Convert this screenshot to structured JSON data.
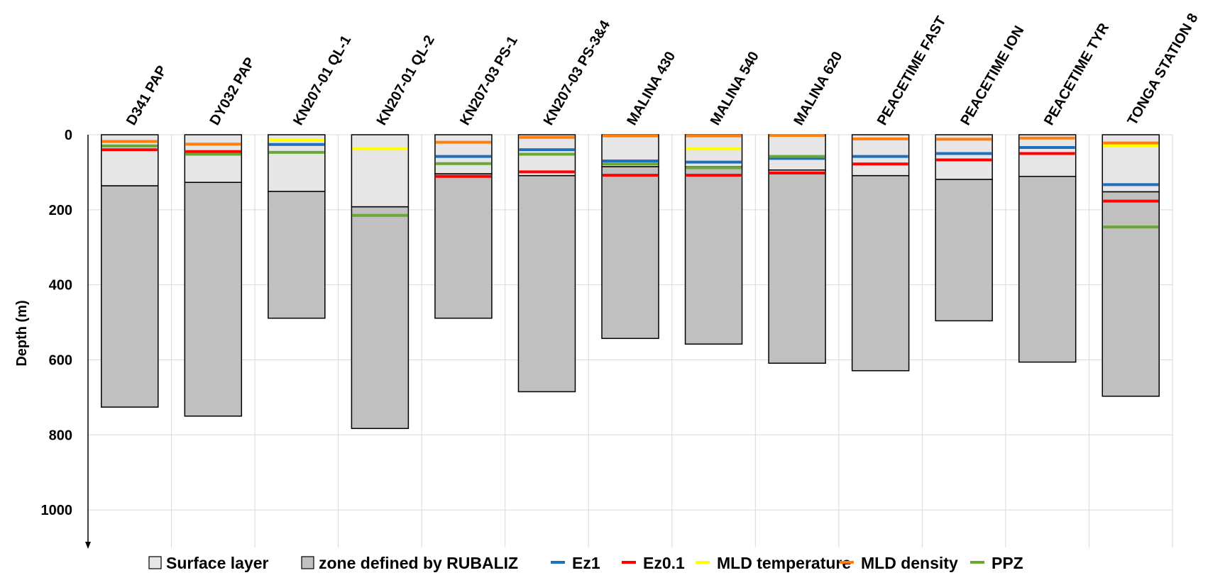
{
  "chart_data": {
    "type": "bar",
    "title": "",
    "xlabel": "",
    "ylabel": "Depth (m)",
    "ylim": [
      0,
      1100
    ],
    "y_inverted": true,
    "yticks": [
      0,
      200,
      400,
      600,
      800,
      1000
    ],
    "grid": true,
    "legend_position": "bottom",
    "categories": [
      "D341 PAP",
      "DY032 PAP",
      "KN207-01 QL-1",
      "KN207-01 QL-2",
      "KN207-03 PS-1",
      "KN207-03 PS-3&4",
      "MALINA 430",
      "MALINA 540",
      "MALINA 620",
      "PEACETIME FAST",
      "PEACETIME ION",
      "PEACETIME TYR",
      "TONGA STATION 8"
    ],
    "surface_layer": [
      136,
      127,
      151,
      192,
      104,
      109,
      85,
      85,
      94,
      109,
      119,
      111,
      152
    ],
    "rubaliz_zone_bottom": [
      726,
      750,
      489,
      783,
      489,
      685,
      543,
      558,
      609,
      629,
      496,
      606,
      697
    ],
    "series": [
      {
        "name": "Surface layer",
        "kind": "bar",
        "color": "#e6e6e6",
        "values": [
          136,
          127,
          151,
          192,
          104,
          109,
          85,
          85,
          94,
          109,
          119,
          111,
          152
        ]
      },
      {
        "name": "zone defined by RUBALIZ",
        "kind": "bar",
        "color": "#c0c0c0",
        "values": [
          590,
          623,
          338,
          591,
          385,
          576,
          458,
          473,
          515,
          520,
          377,
          495,
          545
        ]
      },
      {
        "name": "Ez1",
        "kind": "line",
        "color": "#1f6fbf",
        "values": [
          30,
          47,
          26,
          null,
          58,
          40,
          70,
          73,
          63,
          58,
          50,
          34,
          133
        ]
      },
      {
        "name": "Ez0.1",
        "kind": "line",
        "color": "#ff0000",
        "values": [
          40,
          45,
          null,
          null,
          111,
          99,
          108,
          108,
          102,
          78,
          67,
          50,
          177
        ]
      },
      {
        "name": "MLD temperature",
        "kind": "line",
        "color": "#ffff00",
        "values": [
          null,
          null,
          15,
          38,
          null,
          null,
          null,
          38,
          null,
          null,
          null,
          null,
          29
        ]
      },
      {
        "name": "MLD density",
        "kind": "line",
        "color": "#ff7f0e",
        "values": [
          18,
          25,
          null,
          null,
          20,
          7,
          3,
          3,
          2,
          11,
          12,
          9,
          22
        ]
      },
      {
        "name": "PPZ",
        "kind": "line",
        "color": "#6aa834",
        "values": [
          30,
          52,
          47,
          215,
          77,
          52,
          78,
          88,
          58,
          null,
          null,
          null,
          246
        ]
      }
    ]
  },
  "legend": {
    "items": [
      {
        "label": "Surface layer",
        "kind": "box",
        "color": "#e6e6e6"
      },
      {
        "label": "zone defined by RUBALIZ",
        "kind": "box",
        "color": "#c0c0c0"
      },
      {
        "label": "Ez1",
        "kind": "line",
        "color": "#1f6fbf"
      },
      {
        "label": "Ez0.1",
        "kind": "line",
        "color": "#ff0000"
      },
      {
        "label": "MLD temperature",
        "kind": "line",
        "color": "#ffff00"
      },
      {
        "label": "MLD density",
        "kind": "line",
        "color": "#ff7f0e"
      },
      {
        "label": "PPZ",
        "kind": "line",
        "color": "#6aa834"
      }
    ]
  }
}
